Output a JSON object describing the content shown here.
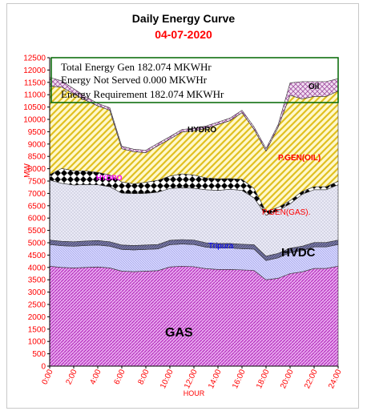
{
  "chart_data": {
    "type": "area",
    "title": "Daily Energy Curve",
    "subtitle": "04-07-2020",
    "xlabel": "HOUR",
    "ylabel": "MW",
    "ylim": [
      0,
      12500
    ],
    "ytick_step": 500,
    "xticks": [
      "0:00",
      "2:00",
      "4:00",
      "6:00",
      "8:00",
      "10:00",
      "12:00",
      "14:00",
      "16:00",
      "18:00",
      "20:00",
      "22:00",
      "24:00"
    ],
    "x": [
      0,
      1,
      2,
      3,
      4,
      5,
      6,
      7,
      8,
      9,
      10,
      11,
      12,
      13,
      14,
      15,
      16,
      17,
      18,
      19,
      20,
      21,
      22,
      23,
      24
    ],
    "series": [
      {
        "name": "GAS",
        "values": [
          4050,
          4000,
          3980,
          4000,
          4020,
          3980,
          3850,
          3830,
          3850,
          3870,
          4020,
          4050,
          4030,
          3950,
          3920,
          3920,
          3900,
          3880,
          3500,
          3560,
          3750,
          3820,
          3960,
          3960,
          4050
        ]
      },
      {
        "name": "Tripura",
        "values": [
          880,
          880,
          880,
          890,
          890,
          880,
          880,
          880,
          880,
          880,
          900,
          900,
          900,
          870,
          870,
          870,
          860,
          860,
          780,
          830,
          850,
          860,
          870,
          870,
          880
        ]
      },
      {
        "name": "HVDC",
        "values": [
          180,
          180,
          180,
          180,
          180,
          180,
          180,
          180,
          180,
          180,
          180,
          180,
          180,
          180,
          180,
          180,
          180,
          180,
          180,
          180,
          180,
          180,
          180,
          180,
          180
        ]
      },
      {
        "name": "P.GEN(GAS)",
        "values": [
          2430,
          2350,
          2300,
          2290,
          2260,
          2230,
          2100,
          2100,
          2090,
          2120,
          2100,
          2100,
          2100,
          2150,
          2150,
          2200,
          2180,
          1900,
          1650,
          1730,
          1800,
          2100,
          2140,
          2140,
          2240
        ]
      },
      {
        "name": "HYDRO",
        "values": [
          220,
          600,
          580,
          550,
          500,
          480,
          450,
          400,
          450,
          480,
          500,
          560,
          530,
          480,
          470,
          430,
          450,
          380,
          160,
          130,
          130,
          120,
          120,
          120,
          140
        ]
      },
      {
        "name": "P.GEN(OIL)",
        "values": [
          3590,
          3300,
          3120,
          2860,
          2700,
          2620,
          1350,
          1300,
          1200,
          1400,
          1500,
          1700,
          1800,
          2000,
          2200,
          2350,
          2700,
          2400,
          2450,
          3250,
          4270,
          3750,
          3660,
          3660,
          3660
        ]
      },
      {
        "name": "Oil",
        "values": [
          350,
          250,
          200,
          150,
          100,
          100,
          100,
          100,
          100,
          100,
          100,
          100,
          100,
          100,
          100,
          100,
          100,
          100,
          100,
          100,
          500,
          700,
          600,
          600,
          500
        ]
      }
    ],
    "annotations": [
      "Total Energy Gen 182.074 MKWHr",
      "Energy Not Served  0.000 MKWHr",
      "Energy Requirement      182.074 MKWHr"
    ],
    "series_labels": [
      "Oil",
      "HYDRO",
      "P.GEN(OIL)",
      "P.GEN(GAS).",
      "HVDC",
      "Tripura",
      "GAS",
      "HYDRO"
    ],
    "colors": {
      "axis_text": "#ff0000",
      "title": "#000000",
      "subtitle": "#ff0000",
      "gas": "#cc33cc",
      "tripura": "#c8c8ff",
      "hvdc": "#555588",
      "pgen_gas": "#d8d8e8",
      "hydro": "#000000",
      "pgen_oil": "#e6cc33",
      "oil": "#cc99cc",
      "box_border": "#006600"
    },
    "grid": false
  }
}
